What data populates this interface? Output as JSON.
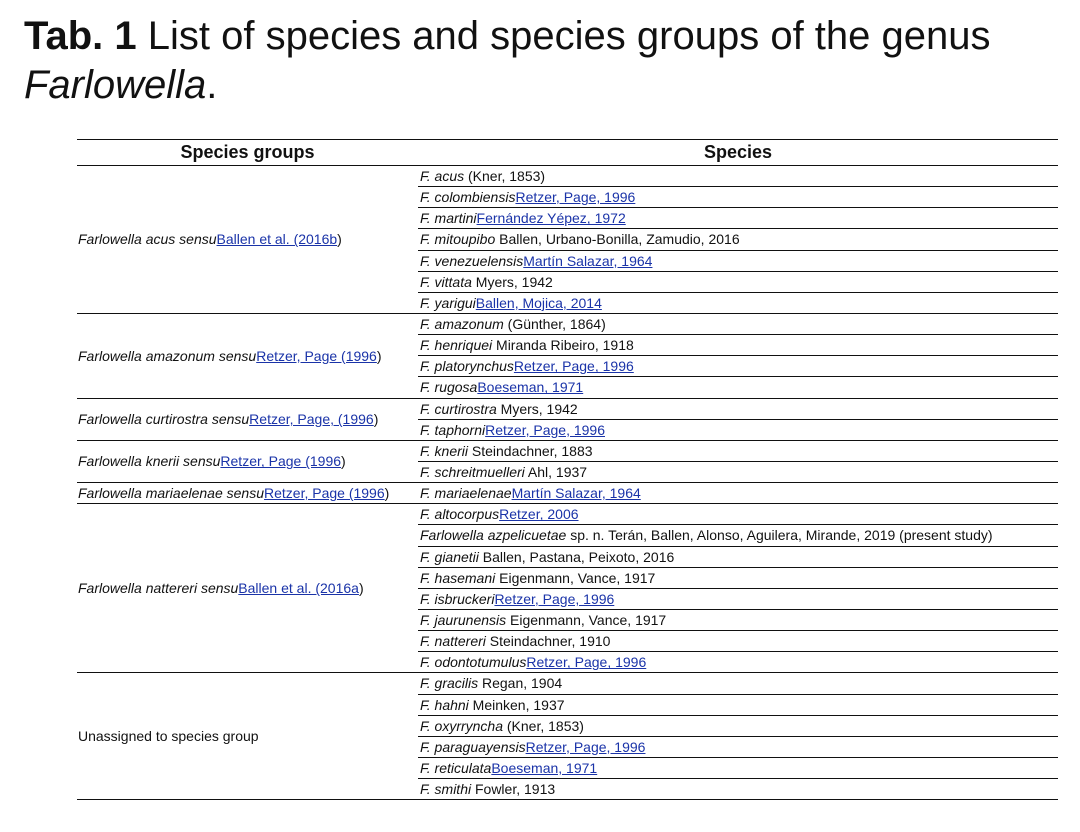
{
  "caption": {
    "label": "Tab. 1",
    "text": " List of species and species groups of the genus ",
    "genus": "Farlowella",
    "end": "."
  },
  "table": {
    "headers": [
      "Species groups",
      "Species"
    ],
    "groups": [
      {
        "name": "Farlowella acus sensu",
        "ref": "Ballen et al. (2016b",
        "tail": ")",
        "species": [
          {
            "name": "F. acus",
            "auth": " (Kner, 1853)",
            "ref": ""
          },
          {
            "name": "F. colombiensis",
            "auth": "",
            "ref": "Retzer, Page, 1996"
          },
          {
            "name": "F. martini",
            "auth": "",
            "ref": "Fernández Yépez, 1972"
          },
          {
            "name": "F. mitoupibo",
            "auth": " Ballen, Urbano-Bonilla, Zamudio, 2016",
            "ref": ""
          },
          {
            "name": "F. venezuelensis",
            "auth": "",
            "ref": "Martín Salazar, 1964"
          },
          {
            "name": "F. vittata",
            "auth": " Myers, 1942",
            "ref": ""
          },
          {
            "name": "F. yarigui",
            "auth": "",
            "ref": "Ballen, Mojica, 2014"
          }
        ]
      },
      {
        "name": "Farlowella amazonum sensu",
        "ref": "Retzer, Page (1996",
        "tail": ")",
        "species": [
          {
            "name": "F. amazonum",
            "auth": " (Günther, 1864)",
            "ref": ""
          },
          {
            "name": "F. henriquei",
            "auth": " Miranda Ribeiro, 1918",
            "ref": ""
          },
          {
            "name": "F. platorynchus",
            "auth": "",
            "ref": "Retzer, Page, 1996"
          },
          {
            "name": "F. rugosa",
            "auth": "",
            "ref": "Boeseman, 1971"
          }
        ]
      },
      {
        "name": "Farlowella curtirostra sensu",
        "ref": "Retzer, Page, (1996",
        "tail": ")",
        "species": [
          {
            "name": "F. curtirostra",
            "auth": " Myers, 1942",
            "ref": ""
          },
          {
            "name": "F. taphorni",
            "auth": "",
            "ref": "Retzer, Page, 1996"
          }
        ]
      },
      {
        "name": "Farlowella knerii sensu",
        "ref": "Retzer, Page (1996",
        "tail": ")",
        "species": [
          {
            "name": "F. knerii",
            "auth": " Steindachner, 1883",
            "ref": ""
          },
          {
            "name": "F. schreitmuelleri",
            "auth": " Ahl, 1937",
            "ref": ""
          }
        ]
      },
      {
        "name": "Farlowella mariaelenae sensu",
        "ref": "Retzer, Page (1996",
        "tail": ")",
        "species": [
          {
            "name": "F. mariaelenae",
            "auth": "",
            "ref": "Martín Salazar, 1964"
          }
        ]
      },
      {
        "name": "Farlowella nattereri sensu",
        "ref": "Ballen et al. (2016a",
        "tail": ")",
        "species": [
          {
            "name": "F. altocorpus",
            "auth": "",
            "ref": "Retzer, 2006"
          },
          {
            "name": "Farlowella azpelicuetae",
            "auth": " sp. n. Terán, Ballen, Alonso, Aguilera, Mirande, 2019 (present study)",
            "ref": ""
          },
          {
            "name": "F. gianetii",
            "auth": " Ballen, Pastana, Peixoto, 2016",
            "ref": ""
          },
          {
            "name": "F. hasemani",
            "auth": " Eigenmann, Vance, 1917",
            "ref": ""
          },
          {
            "name": "F. isbruckeri",
            "auth": "",
            "ref": "Retzer, Page, 1996"
          },
          {
            "name": "F. jaurunensis",
            "auth": " Eigenmann, Vance, 1917",
            "ref": ""
          },
          {
            "name": "F. nattereri",
            "auth": " Steindachner, 1910",
            "ref": ""
          },
          {
            "name": "F. odontotumulus",
            "auth": "",
            "ref": "Retzer, Page, 1996"
          }
        ]
      },
      {
        "name": "",
        "plain": "Unassigned to species group",
        "ref": "",
        "tail": "",
        "species": [
          {
            "name": "F. gracilis",
            "auth": " Regan, 1904",
            "ref": ""
          },
          {
            "name": "F. hahni",
            "auth": " Meinken, 1937",
            "ref": ""
          },
          {
            "name": "F. oxyrryncha",
            "auth": " (Kner, 1853)",
            "ref": ""
          },
          {
            "name": "F. paraguayensis",
            "auth": "",
            "ref": "Retzer, Page, 1996"
          },
          {
            "name": "F. reticulata",
            "auth": "",
            "ref": "Boeseman, 1971"
          },
          {
            "name": "F. smithi",
            "auth": " Fowler, 1913",
            "ref": ""
          }
        ]
      }
    ]
  }
}
